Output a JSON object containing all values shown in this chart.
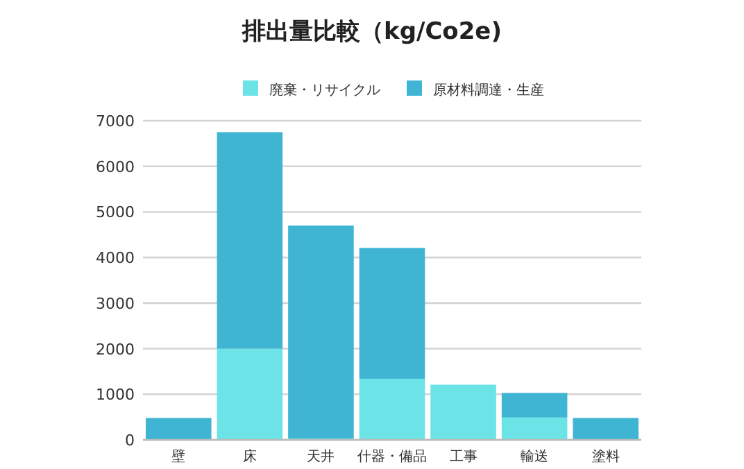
{
  "chart_data": {
    "type": "bar",
    "title": "排出量比較（kg/Co2e)",
    "stacked": true,
    "categories": [
      "壁",
      "床",
      "天井",
      "什器・備品",
      "工事",
      "輸送",
      "塗料"
    ],
    "series": [
      {
        "name": "廃棄・リサイクル",
        "color": "#6ce3e6",
        "values": [
          0,
          2000,
          30,
          1340,
          1210,
          490,
          0
        ]
      },
      {
        "name": "原材料調達・生産",
        "color": "#3fb5d3",
        "values": [
          480,
          4750,
          4670,
          2870,
          0,
          540,
          480
        ]
      }
    ],
    "ylim": [
      0,
      7000
    ],
    "yticks": [
      0,
      1000,
      2000,
      3000,
      4000,
      5000,
      6000,
      7000
    ],
    "grid": "y",
    "legend": "top"
  }
}
